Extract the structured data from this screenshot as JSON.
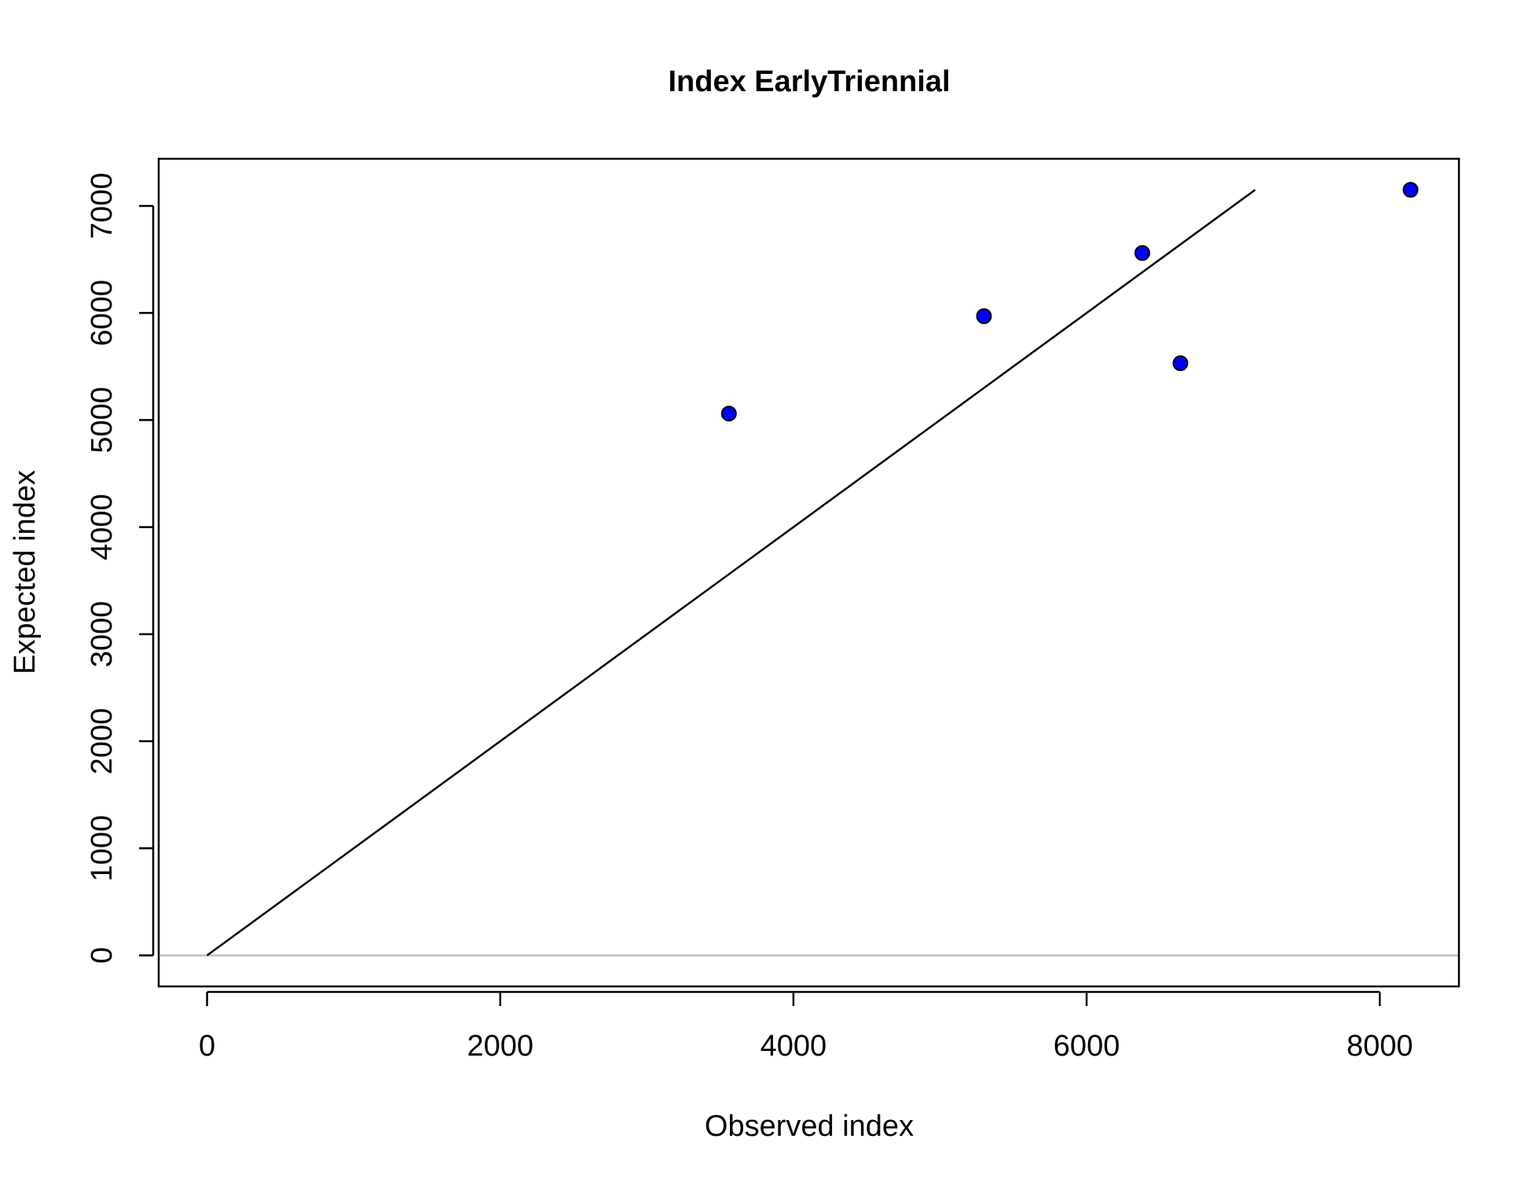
{
  "chart_data": {
    "type": "scatter",
    "title": "Index EarlyTriennial",
    "xlabel": "Observed index",
    "ylabel": "Expected index",
    "xlim": [
      -330,
      8540
    ],
    "ylim": [
      -290,
      7440
    ],
    "xticks": [
      0,
      2000,
      4000,
      6000,
      8000
    ],
    "yticks": [
      0,
      1000,
      2000,
      3000,
      4000,
      5000,
      6000,
      7000
    ],
    "points": [
      {
        "x": 3560,
        "y": 5060
      },
      {
        "x": 5300,
        "y": 5970
      },
      {
        "x": 6380,
        "y": 6560
      },
      {
        "x": 6640,
        "y": 5530
      },
      {
        "x": 8210,
        "y": 7150
      }
    ],
    "reference_line": {
      "x": [
        0,
        7150
      ],
      "y": [
        0,
        7150
      ]
    },
    "zero_line_y": 0,
    "point_color": "#0000ff",
    "point_stroke": "#000000",
    "zero_line_color": "#bebebe",
    "grid": false,
    "legend": "none"
  }
}
